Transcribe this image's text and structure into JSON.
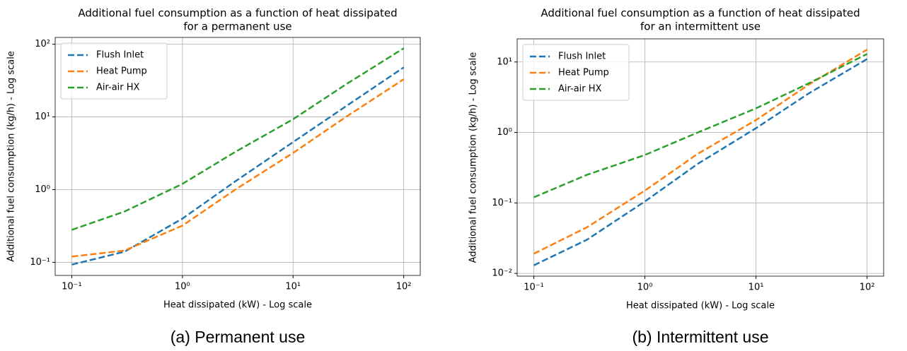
{
  "chart_data": [
    {
      "type": "line",
      "title": [
        "Additional fuel consumption as a function of heat dissipated",
        "for a permanent use"
      ],
      "xlabel": "Heat dissipated (kW) - Log scale",
      "ylabel": "Additional fuel consumption (kg/h) - Log scale",
      "caption": "(a) Permanent use",
      "log_x": true,
      "log_y": true,
      "grid": true,
      "legend": "upper left",
      "xlim": [
        0.0708,
        141
      ],
      "ylim": [
        0.066,
        124
      ],
      "xticks": [
        {
          "value": 0.1,
          "label": "10⁻¹"
        },
        {
          "value": 1,
          "label": "10⁰"
        },
        {
          "value": 10,
          "label": "10¹"
        },
        {
          "value": 100,
          "label": "10²"
        }
      ],
      "yticks": [
        {
          "value": 0.1,
          "label": "10⁻¹"
        },
        {
          "value": 1,
          "label": "10⁰"
        },
        {
          "value": 10,
          "label": "10¹"
        },
        {
          "value": 100,
          "label": "10²"
        }
      ],
      "x": [
        0.1,
        0.3,
        1,
        3,
        10,
        30,
        100
      ],
      "series": [
        {
          "name": "Flush Inlet",
          "color": "#1f77b4",
          "values": [
            0.093,
            0.14,
            0.4,
            1.3,
            4.5,
            14,
            48
          ]
        },
        {
          "name": "Heat Pump",
          "color": "#ff7f0e",
          "values": [
            0.12,
            0.145,
            0.32,
            1.0,
            3.2,
            10,
            33
          ]
        },
        {
          "name": "Air-air HX",
          "color": "#2ca02c",
          "values": [
            0.28,
            0.5,
            1.2,
            3.3,
            9.3,
            28,
            88
          ]
        }
      ]
    },
    {
      "type": "line",
      "title": [
        "Additional fuel consumption as a function of heat dissipated",
        "for an intermittent use"
      ],
      "xlabel": "Heat dissipated (kW) - Log scale",
      "ylabel": "Additional fuel consumption (kg/h) - Log scale",
      "caption": "(b) Intermittent use",
      "log_x": true,
      "log_y": true,
      "grid": true,
      "legend": "upper left",
      "xlim": [
        0.0708,
        141
      ],
      "ylim": [
        0.00914,
        21.3
      ],
      "xticks": [
        {
          "value": 0.1,
          "label": "10⁻¹"
        },
        {
          "value": 1,
          "label": "10⁰"
        },
        {
          "value": 10,
          "label": "10¹"
        },
        {
          "value": 100,
          "label": "10²"
        }
      ],
      "yticks": [
        {
          "value": 0.01,
          "label": "10⁻²"
        },
        {
          "value": 0.1,
          "label": "10⁻¹"
        },
        {
          "value": 1,
          "label": "10⁰"
        },
        {
          "value": 10,
          "label": "10¹"
        }
      ],
      "x": [
        0.1,
        0.3,
        1,
        3,
        10,
        30,
        100
      ],
      "series": [
        {
          "name": "Flush Inlet",
          "color": "#1f77b4",
          "values": [
            0.013,
            0.03,
            0.105,
            0.36,
            1.15,
            3.6,
            11
          ]
        },
        {
          "name": "Heat Pump",
          "color": "#ff7f0e",
          "values": [
            0.019,
            0.045,
            0.15,
            0.5,
            1.5,
            4.8,
            15
          ]
        },
        {
          "name": "Air-air HX",
          "color": "#2ca02c",
          "values": [
            0.12,
            0.25,
            0.48,
            1.0,
            2.2,
            5.0,
            13
          ]
        }
      ]
    }
  ]
}
